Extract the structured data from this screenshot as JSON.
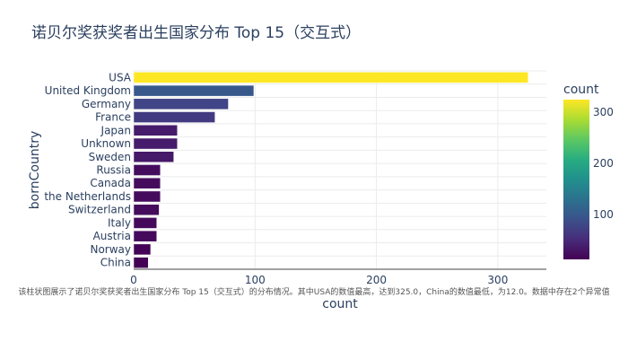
{
  "chart_data": {
    "type": "bar",
    "orientation": "horizontal",
    "title": "诺贝尔奖获奖者出生国家分布 Top 15（交互式）",
    "xlabel": "count",
    "ylabel": "bornCountry",
    "categories": [
      "USA",
      "United Kingdom",
      "Germany",
      "France",
      "Japan",
      "Unknown",
      "Sweden",
      "Russia",
      "Canada",
      "the Netherlands",
      "Switzerland",
      "Italy",
      "Austria",
      "Norway",
      "China"
    ],
    "values": [
      325,
      99,
      78,
      67,
      36,
      36,
      33,
      22,
      22,
      22,
      21,
      19,
      19,
      14,
      12
    ],
    "xlim": [
      0,
      340
    ],
    "xticks": [
      0,
      100,
      200,
      300
    ],
    "grid": true,
    "colorbar": {
      "title": "count",
      "colorscale": "viridis",
      "range": [
        12,
        325
      ],
      "ticks": [
        100,
        200,
        300
      ]
    },
    "annotation": "该柱状图展示了诺贝尔奖获奖者出生国家分布 Top 15（交互式）的分布情况。其中USA的数值最高，达到325.0，China的数值最低，为12.0。数据中存在2个异常值"
  }
}
